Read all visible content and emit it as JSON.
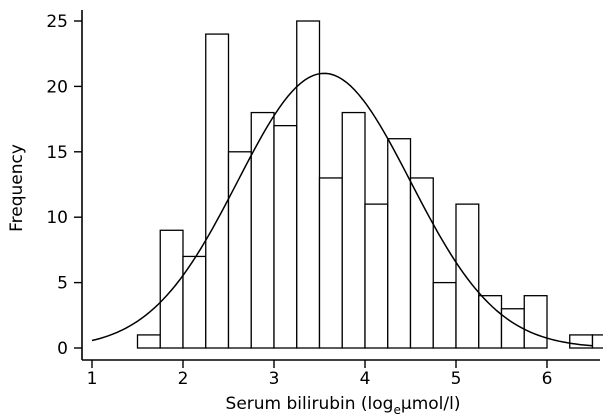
{
  "chart_data": {
    "type": "bar",
    "title": "",
    "xlabel": {
      "prefix": "Serum bilirubin (log",
      "subscript": "e",
      "suffix": "μmol/l)"
    },
    "ylabel": "Frequency",
    "xlim": [
      1.0,
      6.6
    ],
    "ylim": [
      0,
      26
    ],
    "xticks": [
      1,
      2,
      3,
      4,
      5,
      6
    ],
    "yticks": [
      0,
      5,
      10,
      15,
      20,
      25
    ],
    "bin_width": 0.25,
    "bins": [
      {
        "x0": 1.5,
        "value": 1
      },
      {
        "x0": 1.75,
        "value": 9
      },
      {
        "x0": 2.0,
        "value": 7
      },
      {
        "x0": 2.25,
        "value": 24
      },
      {
        "x0": 2.5,
        "value": 15
      },
      {
        "x0": 2.75,
        "value": 18
      },
      {
        "x0": 3.0,
        "value": 17
      },
      {
        "x0": 3.25,
        "value": 25
      },
      {
        "x0": 3.5,
        "value": 13
      },
      {
        "x0": 3.75,
        "value": 18
      },
      {
        "x0": 4.0,
        "value": 11
      },
      {
        "x0": 4.25,
        "value": 16
      },
      {
        "x0": 4.5,
        "value": 13
      },
      {
        "x0": 4.75,
        "value": 5
      },
      {
        "x0": 5.0,
        "value": 11
      },
      {
        "x0": 5.25,
        "value": 4
      },
      {
        "x0": 5.5,
        "value": 3
      },
      {
        "x0": 5.75,
        "value": 4
      },
      {
        "x0": 6.25,
        "value": 1
      },
      {
        "x0": 6.5,
        "value": 1
      }
    ],
    "fitted_curve": {
      "type": "normal",
      "mean": 3.55,
      "sd": 0.95,
      "peak": 21,
      "x_range": [
        1.0,
        6.5
      ]
    },
    "grid": false,
    "legend": "none"
  }
}
